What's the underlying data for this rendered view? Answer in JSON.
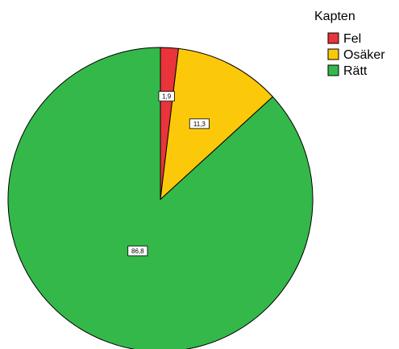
{
  "chart_data": {
    "type": "pie",
    "legend_title": "Kapten",
    "legend_position": "top-right",
    "series": [
      {
        "name": "Fel",
        "value": 1.9,
        "label": "1,9",
        "color": "#e8343a"
      },
      {
        "name": "Osäker",
        "value": 11.3,
        "label": "11,3",
        "color": "#fcc80a"
      },
      {
        "name": "Rätt",
        "value": 86.8,
        "label": "86,8",
        "color": "#34b84a"
      }
    ],
    "edge_color": "#000000"
  }
}
